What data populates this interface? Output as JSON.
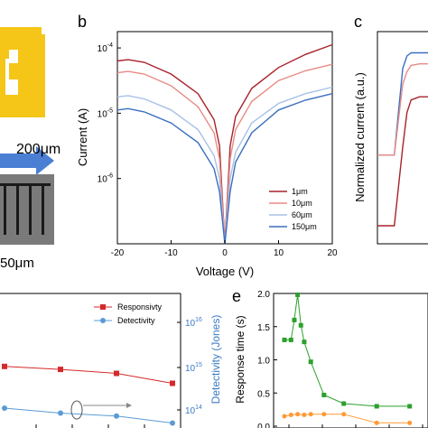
{
  "panels": {
    "a": {
      "scale_label": "200μm",
      "bottom_label": "50μm",
      "device_color": "#f5c518",
      "arrow_color": "#4a7fd4"
    },
    "b": {
      "letter": "b"
    },
    "c": {
      "letter": "c"
    },
    "e": {
      "letter": "e"
    }
  },
  "chart_data": [
    {
      "id": "b",
      "type": "line",
      "xlabel": "Voltage (V)",
      "ylabel": "Current (A)",
      "xlim": [
        -20,
        20
      ],
      "ylim_log10": [
        -7,
        -3.75
      ],
      "yscale": "log",
      "x_ticks": [
        "-20",
        "-10",
        "0",
        "10",
        "20"
      ],
      "y_ticks": [
        "10-6",
        "10-5",
        "10-4"
      ],
      "legend_position": "bottom-right",
      "series": [
        {
          "name": "1μm",
          "color": "#a8222b",
          "x": [
            -20,
            -18,
            -15,
            -10,
            -5,
            -2,
            -1,
            0,
            1,
            2,
            5,
            10,
            15,
            20
          ],
          "logy": [
            -4.2,
            -4.18,
            -4.22,
            -4.4,
            -4.7,
            -5.1,
            -5.5,
            -7.0,
            -5.5,
            -5.05,
            -4.62,
            -4.3,
            -4.1,
            -3.95
          ]
        },
        {
          "name": "10μm",
          "color": "#e88b86",
          "x": [
            -20,
            -18,
            -15,
            -10,
            -5,
            -2,
            -1,
            0,
            1,
            2,
            5,
            10,
            15,
            20
          ],
          "logy": [
            -4.38,
            -4.36,
            -4.4,
            -4.58,
            -4.9,
            -5.3,
            -5.7,
            -7.0,
            -5.7,
            -5.25,
            -4.82,
            -4.5,
            -4.35,
            -4.25
          ]
        },
        {
          "name": "60μm",
          "color": "#a7c1e6",
          "x": [
            -20,
            -18,
            -15,
            -10,
            -5,
            -2,
            -1,
            0,
            1,
            2,
            5,
            10,
            15,
            20
          ],
          "logy": [
            -4.75,
            -4.73,
            -4.78,
            -4.95,
            -5.25,
            -5.65,
            -6.0,
            -7.0,
            -6.0,
            -5.6,
            -5.15,
            -4.85,
            -4.7,
            -4.6
          ]
        },
        {
          "name": "150μm",
          "color": "#3a6fbf",
          "x": [
            -20,
            -18,
            -15,
            -10,
            -5,
            -2,
            -1,
            0,
            1,
            2,
            5,
            10,
            15,
            20
          ],
          "logy": [
            -4.95,
            -4.93,
            -4.98,
            -5.15,
            -5.45,
            -5.85,
            -6.2,
            -7.0,
            -6.2,
            -5.75,
            -5.3,
            -4.95,
            -4.8,
            -4.7
          ]
        }
      ]
    },
    {
      "id": "c",
      "type": "line",
      "ylabel": "Normalized current (a.u.)",
      "series": [
        {
          "color": "#3a6fbf",
          "x": [
            0,
            2,
            3,
            3.5,
            4,
            5,
            6
          ],
          "y": [
            0.45,
            0.45,
            1.0,
            1.08,
            1.1,
            1.1,
            1.1
          ]
        },
        {
          "color": "#e88b86",
          "x": [
            0,
            2,
            3,
            3.5,
            4,
            5,
            6
          ],
          "y": [
            0.45,
            0.45,
            0.9,
            0.98,
            1.02,
            1.03,
            1.03
          ]
        },
        {
          "color": "#a8222b",
          "x": [
            0,
            2,
            3,
            3.5,
            4,
            5,
            6
          ],
          "y": [
            0.0,
            0.0,
            0.5,
            0.72,
            0.8,
            0.82,
            0.82
          ]
        }
      ]
    },
    {
      "id": "d",
      "type": "line",
      "y2label": "Detectivity (Jones)",
      "y2_ticks": [
        "10^14",
        "10^15",
        "10^16"
      ],
      "legend_position": "top-right",
      "series": [
        {
          "name": "Responsivty",
          "color": "#d42a2a",
          "marker": "square",
          "x": [
            1,
            2,
            3,
            4
          ],
          "y": [
            0.62,
            0.59,
            0.55,
            0.45
          ]
        },
        {
          "name": "Detectivity",
          "color": "#5b9bd5",
          "marker": "circle",
          "x": [
            1,
            2,
            3,
            4
          ],
          "y": [
            0.2,
            0.15,
            0.12,
            0.05
          ]
        }
      ]
    },
    {
      "id": "e",
      "type": "line",
      "ylabel": "Response time (s)",
      "ylim": [
        0,
        2.0
      ],
      "y_ticks": [
        "0.0",
        "0.5",
        "1.0",
        "1.5",
        "2.0"
      ],
      "series": [
        {
          "color": "#2ca02c",
          "marker": "square",
          "x": [
            1,
            2,
            2.5,
            3,
            3.5,
            4,
            5,
            7,
            10,
            15,
            20
          ],
          "y": [
            1.3,
            1.3,
            1.6,
            1.98,
            1.52,
            1.27,
            0.97,
            0.47,
            0.34,
            0.3,
            0.3
          ]
        },
        {
          "color": "#ff9933",
          "marker": "circle",
          "x": [
            1,
            2,
            3,
            4,
            5,
            7,
            10,
            15,
            20
          ],
          "y": [
            0.15,
            0.17,
            0.18,
            0.17,
            0.18,
            0.18,
            0.18,
            0.05,
            0.05
          ]
        }
      ]
    }
  ]
}
